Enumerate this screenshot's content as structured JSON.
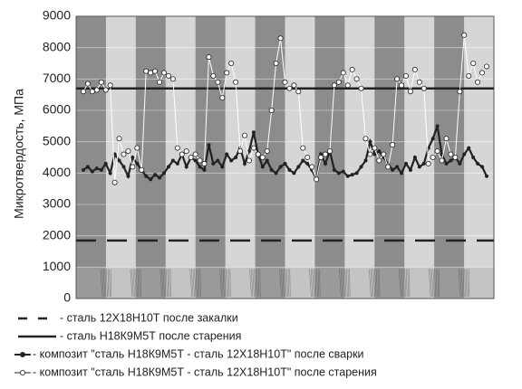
{
  "chart_data": {
    "type": "line",
    "y_label": "Микротвердость, МПа",
    "ylim": [
      0,
      9000
    ],
    "yticks": [
      0,
      1000,
      2000,
      3000,
      4000,
      5000,
      6000,
      7000,
      8000,
      9000
    ],
    "grid": true,
    "hlines": [
      {
        "name": "- сталь 12Х18Н10Т после закалки",
        "value": 1850,
        "style": "dashed",
        "color": "#222222"
      },
      {
        "name": "- сталь Н18К9М5Т после старения",
        "value": 6700,
        "style": "solid",
        "color": "#222222"
      }
    ],
    "series": [
      {
        "name": "- композит \"сталь Н18К9М5Т - сталь 12Х18Н10Т\" после сварки",
        "color": "#222222",
        "marker": "filled",
        "values": [
          4100,
          4200,
          4050,
          4150,
          4100,
          4300,
          4000,
          4600,
          4400,
          4200,
          3900,
          4500,
          4300,
          4100,
          3900,
          3800,
          3950,
          3850,
          4000,
          4200,
          4400,
          4300,
          4600,
          4200,
          4500,
          4400,
          4200,
          4100,
          4900,
          4300,
          4400,
          4200,
          4600,
          4400,
          4500,
          4800,
          4300,
          4700,
          5300,
          4600,
          4200,
          4400,
          4100,
          4000,
          4200,
          4300,
          4100,
          4000,
          4200,
          4400,
          4300,
          4100,
          3800,
          4600,
          4300,
          4700,
          4100,
          4000,
          4050,
          3900,
          3950,
          4000,
          4200,
          4400,
          5000,
          4600,
          4700,
          4500,
          4300,
          4100,
          4200,
          4000,
          4300,
          4100,
          4500,
          4200,
          4300,
          4800,
          5100,
          5500,
          4600,
          4300,
          4400,
          4500,
          4300,
          4600,
          4800,
          4500,
          4300,
          4200,
          3900
        ]
      },
      {
        "name": "- композит \"сталь Н18К9М5Т - сталь 12Х18Н10Т\" после старения",
        "color": "#ffffff",
        "marker": "open",
        "values": [
          6600,
          6850,
          6600,
          6650,
          6900,
          6650,
          6800,
          3700,
          5100,
          4600,
          4700,
          4200,
          4800,
          4100,
          7250,
          7200,
          7250,
          6900,
          7200,
          7100,
          7000,
          4800,
          4600,
          4700,
          4500,
          4600,
          4400,
          4300,
          7700,
          7100,
          6900,
          6400,
          7200,
          7500,
          6900,
          4700,
          5200,
          4400,
          4800,
          4600,
          4500,
          4700,
          6000,
          7500,
          8300,
          6900,
          6700,
          6800,
          6600,
          4800,
          4500,
          4200,
          3800,
          4500,
          4600,
          4700,
          6800,
          6900,
          7200,
          6800,
          7300,
          7000,
          6700,
          5100,
          4600,
          4800,
          4400,
          4600,
          4200,
          4900,
          7000,
          6800,
          7100,
          6600,
          7300,
          6900,
          6700,
          4300,
          4500,
          4700,
          4400,
          5100,
          4600,
          4500,
          6600,
          8400,
          7100,
          7500,
          6900,
          7200,
          7400
        ]
      }
    ]
  }
}
